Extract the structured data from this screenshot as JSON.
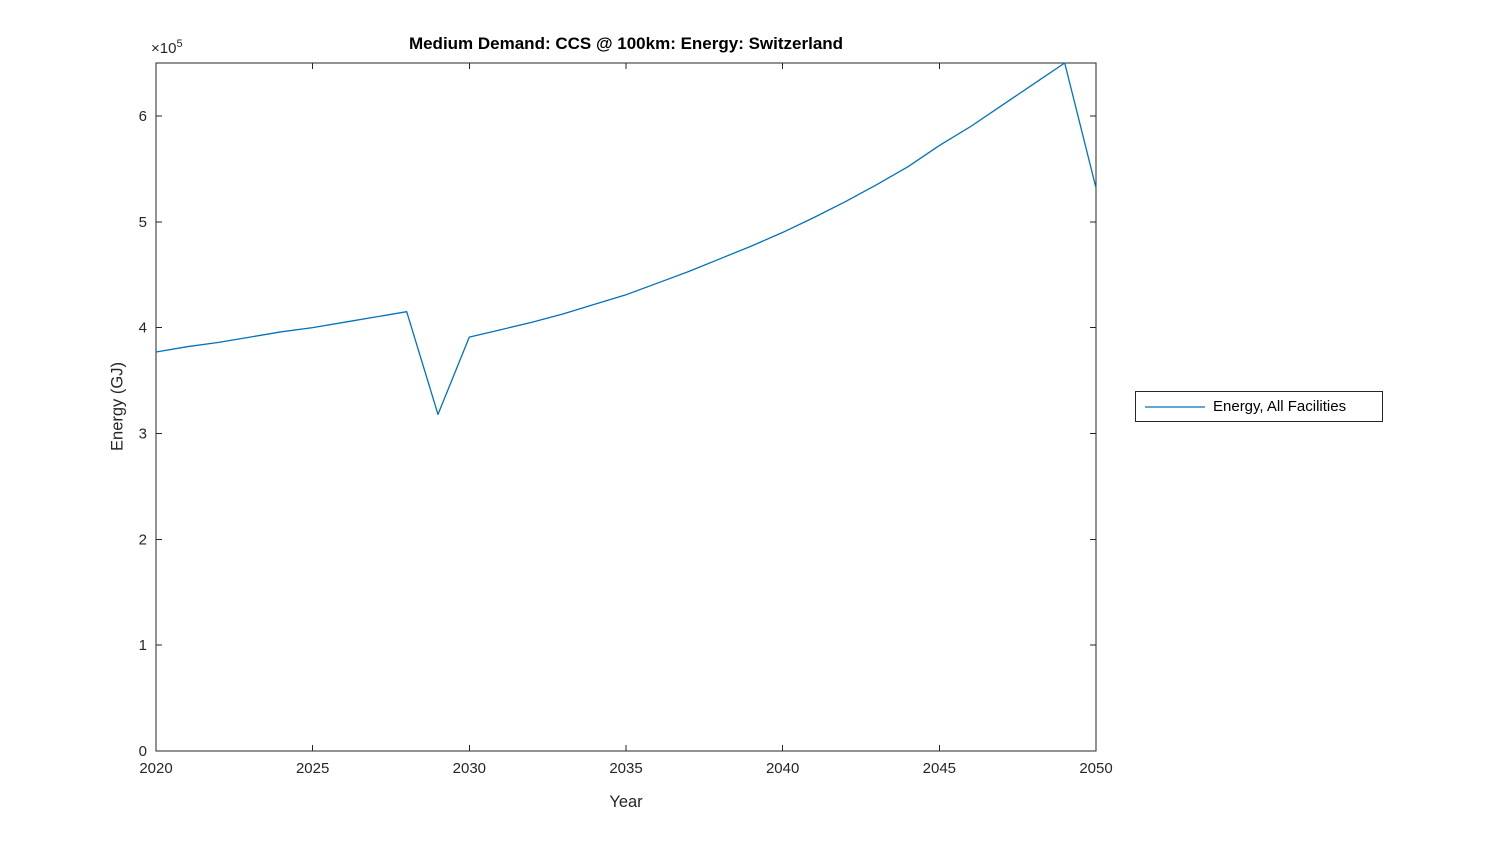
{
  "figure": {
    "background": "#ffffff",
    "axis_color": "#262626",
    "title_color": "#000000"
  },
  "chart_data": {
    "type": "line",
    "title": "Medium Demand: CCS @ 100km: Energy: Switzerland",
    "xlabel": "Year",
    "ylabel": "Energy (GJ)",
    "y_axis_multiplier": {
      "base": "×10",
      "exponent": "5"
    },
    "xlim": [
      2020,
      2050
    ],
    "ylim": [
      0,
      650000
    ],
    "xticks": [
      2020,
      2025,
      2030,
      2035,
      2040,
      2045,
      2050
    ],
    "xticklabels": [
      "2020",
      "2025",
      "2030",
      "2035",
      "2040",
      "2045",
      "2050"
    ],
    "yticks": [
      0,
      100000,
      200000,
      300000,
      400000,
      500000,
      600000
    ],
    "yticklabels": [
      "0",
      "1",
      "2",
      "3",
      "4",
      "5",
      "6"
    ],
    "grid": false,
    "box": true,
    "legend": {
      "position": "right-outside",
      "entries": [
        {
          "label": "Energy, All Facilities",
          "color": "#0072BD"
        }
      ]
    },
    "series": [
      {
        "name": "Energy, All Facilities",
        "color": "#0072BD",
        "x": [
          2020,
          2021,
          2022,
          2023,
          2024,
          2025,
          2026,
          2027,
          2028,
          2029,
          2030,
          2031,
          2032,
          2033,
          2034,
          2035,
          2036,
          2037,
          2038,
          2039,
          2040,
          2041,
          2042,
          2043,
          2044,
          2045,
          2046,
          2047,
          2048,
          2049,
          2050
        ],
        "y": [
          377000,
          382000,
          386000,
          391000,
          396000,
          400000,
          405000,
          410000,
          415000,
          318000,
          391000,
          398000,
          405000,
          413000,
          422000,
          431000,
          442000,
          453000,
          465000,
          477000,
          490000,
          504000,
          519000,
          535000,
          552000,
          572000,
          590000,
          610000,
          630000,
          650000,
          532000
        ]
      }
    ]
  }
}
